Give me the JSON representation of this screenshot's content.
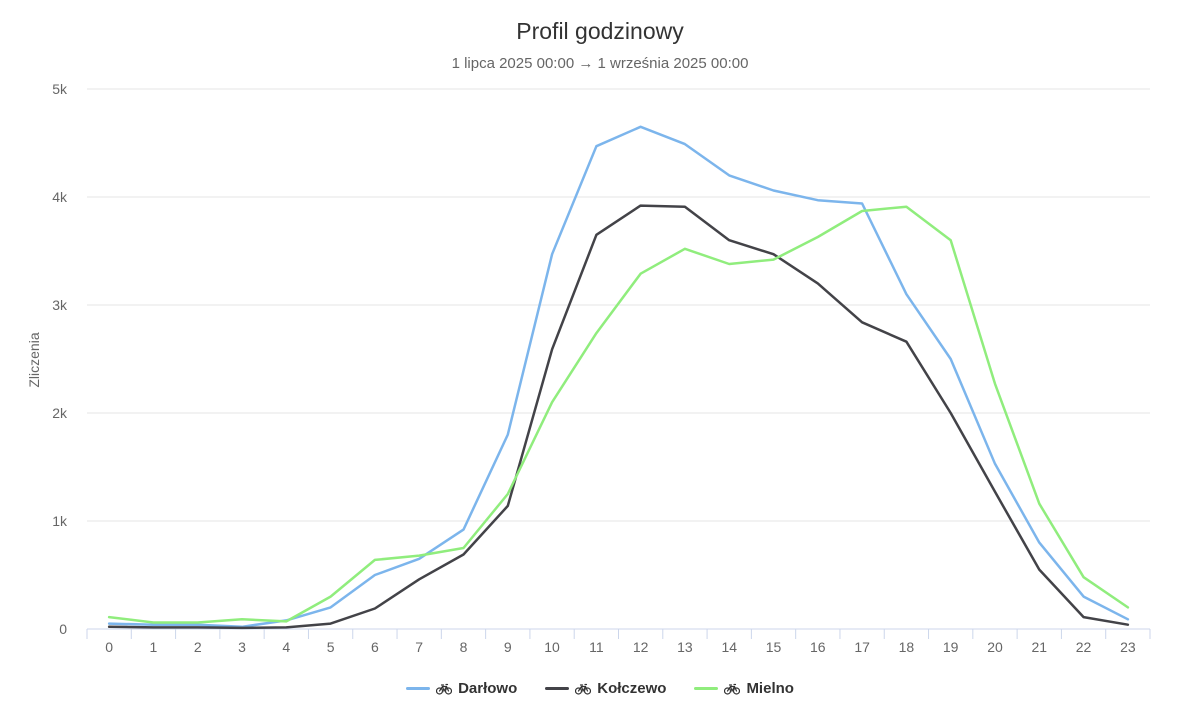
{
  "chart_data": {
    "type": "line",
    "title": "Profil godzinowy",
    "subtitle": "1 lipca 2025 00:00 → 1 września 2025 00:00",
    "ylabel": "Zliczenia",
    "xlabel": "",
    "ylim": [
      0,
      5000
    ],
    "yticks": [
      {
        "value": 0,
        "label": "0"
      },
      {
        "value": 1000,
        "label": "1k"
      },
      {
        "value": 2000,
        "label": "2k"
      },
      {
        "value": 3000,
        "label": "3k"
      },
      {
        "value": 4000,
        "label": "4k"
      },
      {
        "value": 5000,
        "label": "5k"
      }
    ],
    "grid": true,
    "legend_position": "bottom-center",
    "categories": [
      "0",
      "1",
      "2",
      "3",
      "4",
      "5",
      "6",
      "7",
      "8",
      "9",
      "10",
      "11",
      "12",
      "13",
      "14",
      "15",
      "16",
      "17",
      "18",
      "19",
      "20",
      "21",
      "22",
      "23"
    ],
    "series": [
      {
        "name": "Darłowo",
        "color": "#7cb5ec",
        "icon": "bicycle-icon",
        "values": [
          50,
          40,
          40,
          20,
          80,
          200,
          500,
          650,
          920,
          1800,
          3470,
          4470,
          4650,
          4490,
          4200,
          4060,
          3970,
          3940,
          3100,
          2500,
          1530,
          800,
          300,
          90
        ]
      },
      {
        "name": "Kołczewo",
        "color": "#434348",
        "icon": "bicycle-icon",
        "values": [
          20,
          15,
          15,
          10,
          15,
          50,
          190,
          460,
          690,
          1140,
          2590,
          3650,
          3920,
          3910,
          3600,
          3470,
          3200,
          2840,
          2660,
          2000,
          1270,
          550,
          110,
          40
        ]
      },
      {
        "name": "Mielno",
        "color": "#90ed7d",
        "icon": "bicycle-icon",
        "values": [
          110,
          60,
          60,
          90,
          70,
          300,
          640,
          680,
          750,
          1250,
          2100,
          2740,
          3290,
          3520,
          3380,
          3420,
          3630,
          3870,
          3910,
          3600,
          2270,
          1160,
          480,
          200
        ]
      }
    ]
  }
}
